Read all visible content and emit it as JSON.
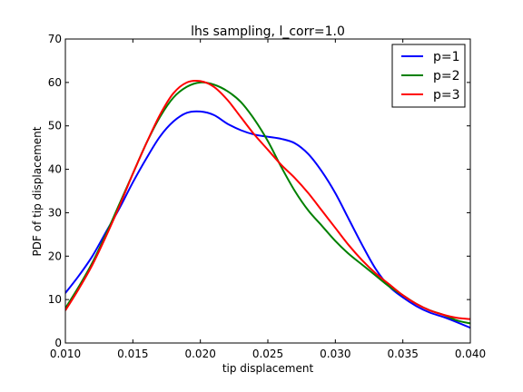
{
  "chart_data": {
    "type": "line",
    "title": "lhs sampling, l_corr=1.0",
    "xlabel": "tip displacement",
    "ylabel": "PDF of tip displacement",
    "xlim": [
      0.01,
      0.04
    ],
    "ylim": [
      0,
      70
    ],
    "xticks": [
      "0.010",
      "0.015",
      "0.020",
      "0.025",
      "0.030",
      "0.035",
      "0.040"
    ],
    "yticks": [
      "0",
      "10",
      "20",
      "30",
      "40",
      "50",
      "60",
      "70"
    ],
    "grid": false,
    "legend_position": "top-right",
    "series": [
      {
        "name": "p=1",
        "color": "#0000ff",
        "x": [
          0.01,
          0.011,
          0.012,
          0.013,
          0.014,
          0.015,
          0.016,
          0.017,
          0.018,
          0.019,
          0.02,
          0.021,
          0.022,
          0.023,
          0.024,
          0.025,
          0.026,
          0.027,
          0.028,
          0.029,
          0.03,
          0.031,
          0.032,
          0.033,
          0.034,
          0.035,
          0.036,
          0.037,
          0.038,
          0.039,
          0.04
        ],
        "y": [
          11.5,
          15.5,
          20.0,
          25.5,
          31.0,
          37.0,
          42.5,
          47.5,
          51.0,
          53.0,
          53.3,
          52.5,
          50.5,
          49.0,
          48.0,
          47.5,
          47.0,
          46.0,
          43.5,
          39.5,
          34.5,
          28.5,
          22.5,
          17.0,
          13.0,
          10.5,
          8.5,
          7.0,
          6.0,
          4.8,
          3.5
        ]
      },
      {
        "name": "p=2",
        "color": "#008000",
        "x": [
          0.01,
          0.011,
          0.012,
          0.013,
          0.014,
          0.015,
          0.016,
          0.017,
          0.018,
          0.019,
          0.02,
          0.021,
          0.022,
          0.023,
          0.024,
          0.025,
          0.026,
          0.027,
          0.028,
          0.029,
          0.03,
          0.031,
          0.032,
          0.033,
          0.034,
          0.035,
          0.036,
          0.037,
          0.038,
          0.039,
          0.04
        ],
        "y": [
          8.0,
          13.0,
          18.5,
          25.0,
          32.0,
          39.0,
          46.0,
          52.0,
          56.5,
          59.0,
          60.0,
          59.5,
          58.0,
          55.5,
          51.5,
          46.5,
          40.5,
          35.0,
          30.5,
          27.0,
          23.5,
          20.5,
          18.0,
          15.5,
          13.0,
          11.0,
          9.0,
          7.5,
          6.5,
          5.2,
          4.5
        ]
      },
      {
        "name": "p=3",
        "color": "#ff0000",
        "x": [
          0.01,
          0.011,
          0.012,
          0.013,
          0.014,
          0.015,
          0.016,
          0.017,
          0.018,
          0.019,
          0.02,
          0.021,
          0.022,
          0.023,
          0.024,
          0.025,
          0.026,
          0.027,
          0.028,
          0.029,
          0.03,
          0.031,
          0.032,
          0.033,
          0.034,
          0.035,
          0.036,
          0.037,
          0.038,
          0.039,
          0.04
        ],
        "y": [
          7.5,
          12.5,
          18.0,
          24.5,
          31.5,
          39.0,
          46.0,
          52.5,
          57.5,
          60.0,
          60.3,
          59.0,
          56.0,
          52.0,
          48.0,
          44.5,
          41.0,
          38.0,
          34.5,
          30.5,
          26.5,
          22.5,
          19.0,
          16.0,
          13.5,
          11.0,
          9.0,
          7.5,
          6.5,
          5.8,
          5.5
        ]
      }
    ]
  }
}
